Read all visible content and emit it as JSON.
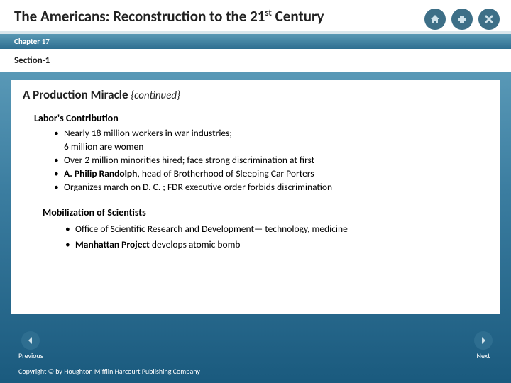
{
  "colors": {
    "bg_gradient_top": "#6ba9c4",
    "bg_gradient_mid": "#3b7da0",
    "bg_gradient_bot": "#1a5a7e",
    "icon_circle": "#3d6f87",
    "white": "#ffffff",
    "text": "#222222"
  },
  "header": {
    "title_pre": "The Americans: Reconstruction to the 21",
    "title_sup": "st",
    "title_post": " Century"
  },
  "chapter": "Chapter 17",
  "section": "Section-1",
  "content": {
    "heading": "A Production Miracle",
    "continued": "{continued}",
    "group1": {
      "label": "Labor's Contribution",
      "bullets": [
        "Nearly 18 million workers in war industries;\n6 million are women",
        "Over 2 million minorities hired; face strong discrimination at first",
        "__A. Philip Randolph__, head of Brotherhood of Sleeping Car Porters",
        "Organizes march on D. C. ; FDR executive order forbids discrimination"
      ]
    },
    "group2": {
      "label": "Mobilization of Scientists",
      "bullets": [
        "Office of Scientific Research and Development— technology, medicine",
        "__Manhattan Project__ develops atomic bomb"
      ]
    }
  },
  "nav": {
    "prev": "Previous",
    "next": "Next"
  },
  "copyright": "Copyright © by Houghton Mifflin Harcourt Publishing Company"
}
